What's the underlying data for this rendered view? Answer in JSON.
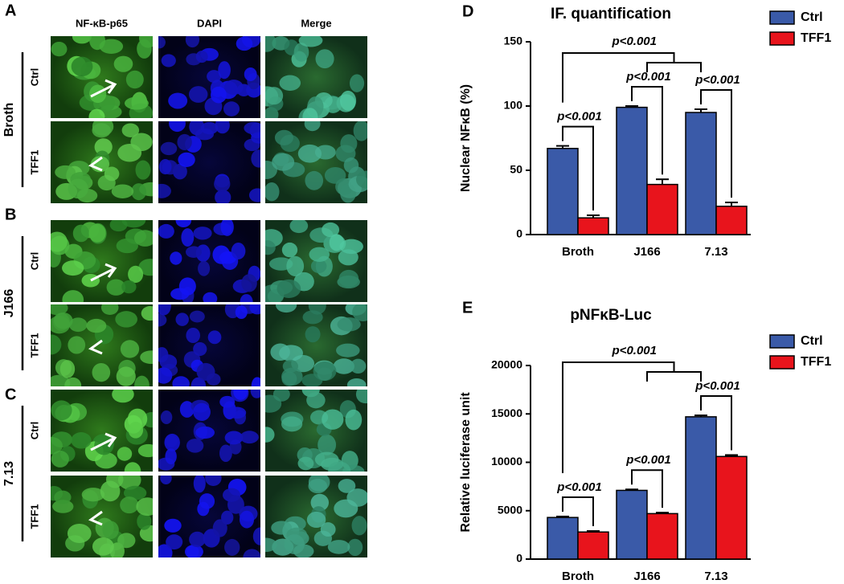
{
  "figure": {
    "panels": [
      "A",
      "B",
      "C"
    ],
    "columns": [
      "NF-κB-p65",
      "DAPI",
      "Merge"
    ],
    "groups": [
      "Broth",
      "J166",
      "7.13"
    ],
    "rows": [
      "Ctrl",
      "TFF1"
    ]
  },
  "chart_data": [
    {
      "type": "bar",
      "label": "D",
      "title": "IF. quantification",
      "y_label": "Nuclear NFκB (%)",
      "categories": [
        "Broth",
        "J166",
        "7.13"
      ],
      "series": [
        {
          "name": "Ctrl",
          "color": "#3a5aa8",
          "values": [
            67,
            99,
            95
          ],
          "errors": [
            2,
            1,
            2.5
          ]
        },
        {
          "name": "TFF1",
          "color": "#e8141c",
          "values": [
            13,
            39,
            22
          ],
          "errors": [
            2,
            4,
            3
          ]
        }
      ],
      "ylim": [
        0,
        150
      ],
      "yticks": [
        0,
        50,
        100,
        150
      ],
      "grid": false,
      "legend": "top-right",
      "annotations": [
        "p<0.001",
        "p<0.001",
        "p<0.001",
        "p<0.001"
      ]
    },
    {
      "type": "bar",
      "label": "E",
      "title": "pNFκB-Luc",
      "y_label": "Relative luciferase unit",
      "categories": [
        "Broth",
        "J166",
        "7.13"
      ],
      "series": [
        {
          "name": "Ctrl",
          "color": "#3a5aa8",
          "values": [
            4300,
            7100,
            14700
          ],
          "errors": [
            100,
            100,
            150
          ]
        },
        {
          "name": "TFF1",
          "color": "#e8141c",
          "values": [
            2800,
            4700,
            10600
          ],
          "errors": [
            100,
            100,
            150
          ]
        }
      ],
      "ylim": [
        0,
        20000
      ],
      "yticks": [
        0,
        5000,
        10000,
        15000,
        20000
      ],
      "grid": false,
      "legend": "top-right",
      "annotations": [
        "p<0.001",
        "p<0.001",
        "p<0.001",
        "p<0.001"
      ]
    }
  ]
}
